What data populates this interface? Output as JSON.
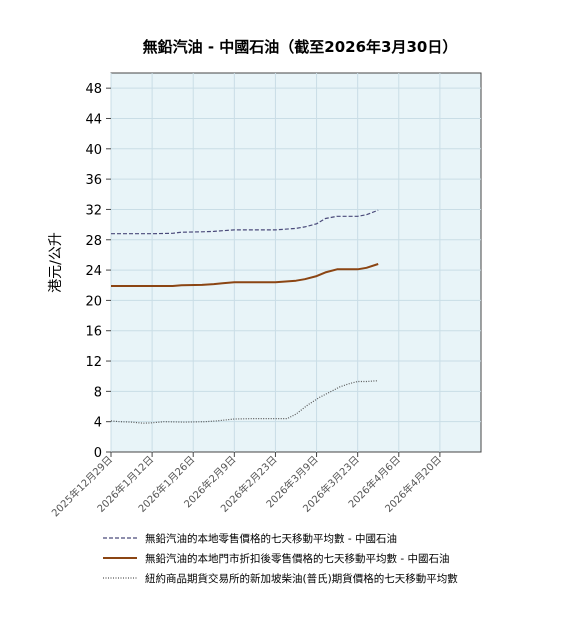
{
  "chart_data": {
    "type": "line",
    "title": "無鉛汽油 - 中國石油（截至2026年3月30日）",
    "ylabel": "港元/公升",
    "xlabel": "",
    "ylim": [
      0,
      50
    ],
    "yticks": [
      0,
      4,
      8,
      12,
      16,
      20,
      24,
      28,
      32,
      36,
      40,
      44,
      48
    ],
    "xlim": [
      "2025-12-29",
      "2026-05-04"
    ],
    "x_tick_labels": [
      "2025年12月29日",
      "2026年1月12日",
      "2026年1月26日",
      "2026年2月9日",
      "2026年2月23日",
      "2026年3月9日",
      "2026年3月23日",
      "2026年4月6日",
      "2026年4月20日"
    ],
    "x_tick_dates": [
      "2025-12-29",
      "2026-01-12",
      "2026-01-26",
      "2026-02-09",
      "2026-02-23",
      "2026-03-09",
      "2026-03-23",
      "2026-04-06",
      "2026-04-20"
    ],
    "grid": true,
    "legend_position": "bottom",
    "series": [
      {
        "name": "無鉛汽油的本地零售價格的七天移動平均數 - 中國石油",
        "style": "dashed",
        "color": "#4a4a7a",
        "points": [
          [
            "2025-12-29",
            28.8
          ],
          [
            "2026-01-05",
            28.8
          ],
          [
            "2026-01-12",
            28.8
          ],
          [
            "2026-01-19",
            28.85
          ],
          [
            "2026-01-22",
            29.0
          ],
          [
            "2026-01-29",
            29.05
          ],
          [
            "2026-02-02",
            29.1
          ],
          [
            "2026-02-05",
            29.2
          ],
          [
            "2026-02-09",
            29.3
          ],
          [
            "2026-02-16",
            29.3
          ],
          [
            "2026-02-23",
            29.3
          ],
          [
            "2026-03-02",
            29.5
          ],
          [
            "2026-03-05",
            29.7
          ],
          [
            "2026-03-09",
            30.1
          ],
          [
            "2026-03-12",
            30.8
          ],
          [
            "2026-03-16",
            31.1
          ],
          [
            "2026-03-19",
            31.1
          ],
          [
            "2026-03-23",
            31.1
          ],
          [
            "2026-03-26",
            31.3
          ],
          [
            "2026-03-30",
            31.9
          ]
        ]
      },
      {
        "name": "無鉛汽油的本地門市折扣後零售價格的七天移動平均數 - 中國石油",
        "style": "solid",
        "color": "#8b4513",
        "points": [
          [
            "2025-12-29",
            21.9
          ],
          [
            "2026-01-05",
            21.9
          ],
          [
            "2026-01-12",
            21.9
          ],
          [
            "2026-01-19",
            21.9
          ],
          [
            "2026-01-22",
            22.0
          ],
          [
            "2026-01-29",
            22.05
          ],
          [
            "2026-02-02",
            22.15
          ],
          [
            "2026-02-05",
            22.25
          ],
          [
            "2026-02-09",
            22.4
          ],
          [
            "2026-02-16",
            22.4
          ],
          [
            "2026-02-23",
            22.4
          ],
          [
            "2026-03-02",
            22.6
          ],
          [
            "2026-03-05",
            22.8
          ],
          [
            "2026-03-09",
            23.2
          ],
          [
            "2026-03-12",
            23.7
          ],
          [
            "2026-03-16",
            24.1
          ],
          [
            "2026-03-19",
            24.1
          ],
          [
            "2026-03-23",
            24.1
          ],
          [
            "2026-03-26",
            24.3
          ],
          [
            "2026-03-30",
            24.8
          ]
        ]
      },
      {
        "name": "紐約商品期貨交易所的新加坡柴油(普氏)期貨價格的七天移動平均數",
        "style": "dotted",
        "color": "#555555",
        "points": [
          [
            "2025-12-29",
            4.1
          ],
          [
            "2026-01-01",
            4.0
          ],
          [
            "2026-01-05",
            3.95
          ],
          [
            "2026-01-09",
            3.8
          ],
          [
            "2026-01-12",
            3.85
          ],
          [
            "2026-01-16",
            4.0
          ],
          [
            "2026-01-23",
            3.95
          ],
          [
            "2026-01-30",
            4.0
          ],
          [
            "2026-02-03",
            4.1
          ],
          [
            "2026-02-09",
            4.35
          ],
          [
            "2026-02-16",
            4.4
          ],
          [
            "2026-02-23",
            4.4
          ],
          [
            "2026-02-27",
            4.4
          ],
          [
            "2026-03-02",
            5.0
          ],
          [
            "2026-03-06",
            6.2
          ],
          [
            "2026-03-10",
            7.2
          ],
          [
            "2026-03-14",
            8.0
          ],
          [
            "2026-03-17",
            8.6
          ],
          [
            "2026-03-20",
            9.0
          ],
          [
            "2026-03-23",
            9.3
          ],
          [
            "2026-03-26",
            9.3
          ],
          [
            "2026-03-30",
            9.4
          ]
        ]
      }
    ]
  }
}
